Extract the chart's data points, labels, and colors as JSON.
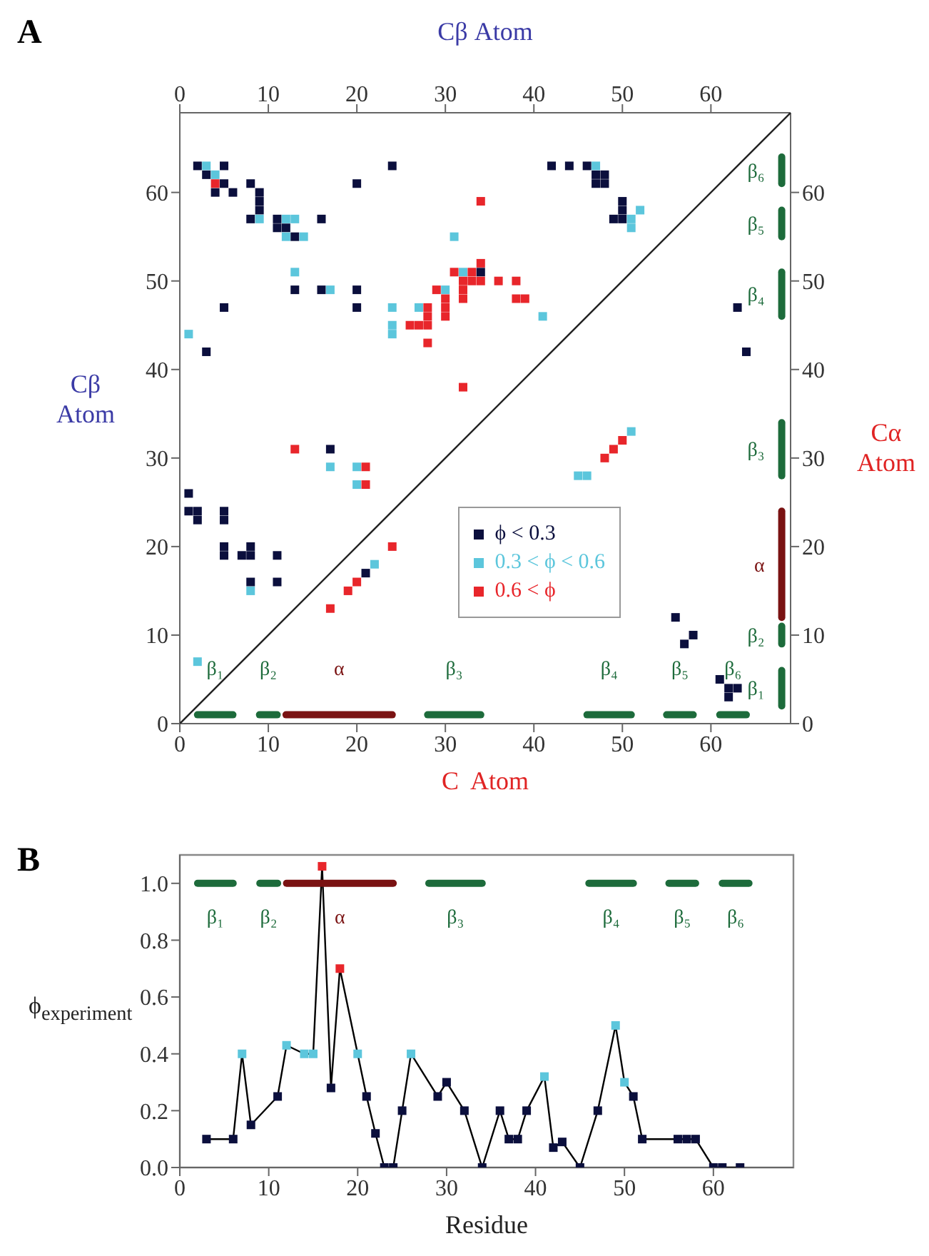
{
  "chart_data": [
    {
      "type": "scatter",
      "title": "A",
      "x2label": "Cβ Atom",
      "xlabel": "C  Atom",
      "ylabel": "Cβ Atom",
      "y2label": "Cα Atom",
      "xlim": [
        0,
        69
      ],
      "ylim": [
        0,
        69
      ],
      "x2lim": [
        0,
        69
      ],
      "y2lim": [
        0,
        69
      ],
      "xticks": [
        0,
        10,
        20,
        30,
        40,
        50,
        60
      ],
      "x2ticks": [
        0,
        10,
        20,
        30,
        40,
        50,
        60
      ],
      "yticks": [
        0,
        10,
        20,
        30,
        40,
        50,
        60
      ],
      "y2ticks": [
        0,
        10,
        20,
        30,
        40,
        50,
        60
      ],
      "marker": "square",
      "legend": "right",
      "grid": false,
      "series": [
        {
          "name": "ϕ < 0.3",
          "color": "#0b0f3d",
          "x": [
            2,
            5,
            24,
            42,
            44,
            46,
            3,
            5,
            8,
            20,
            4,
            6,
            9,
            9,
            9,
            8,
            11,
            16,
            11,
            12,
            13,
            34,
            13,
            16,
            20,
            5,
            20,
            3,
            17,
            1,
            1,
            2,
            5,
            2,
            5,
            5,
            5,
            7,
            8,
            8,
            11,
            8,
            11,
            21,
            47,
            48,
            47,
            48,
            50,
            50,
            49,
            50,
            63,
            64,
            56,
            57,
            58,
            61,
            62,
            62,
            63
          ],
          "values": [
            63,
            63,
            63,
            63,
            63,
            63,
            62,
            61,
            61,
            61,
            60,
            60,
            60,
            59,
            58,
            57,
            57,
            57,
            56,
            56,
            55,
            51,
            49,
            49,
            49,
            47,
            47,
            42,
            31,
            26,
            24,
            24,
            24,
            23,
            23,
            20,
            19,
            19,
            20,
            19,
            19,
            16,
            16,
            17,
            62,
            62,
            61,
            61,
            59,
            58,
            57,
            57,
            47,
            42,
            12,
            9,
            10,
            5,
            4,
            3,
            4
          ]
        },
        {
          "name": "0.3 < ϕ < 0.6",
          "color": "#5cc6dc",
          "x": [
            3,
            4,
            9,
            12,
            13,
            12,
            14,
            31,
            13,
            32,
            17,
            30,
            24,
            27,
            41,
            24,
            1,
            24,
            17,
            20,
            20,
            8,
            2,
            22,
            47,
            52,
            51,
            51,
            45,
            46,
            51
          ],
          "values": [
            63,
            62,
            57,
            57,
            57,
            55,
            55,
            55,
            51,
            51,
            49,
            49,
            47,
            47,
            46,
            45,
            44,
            44,
            29,
            29,
            27,
            15,
            7,
            18,
            63,
            58,
            57,
            56,
            28,
            28,
            33
          ]
        },
        {
          "name": "0.6 < ϕ",
          "color": "#e8262b",
          "x": [
            4,
            34,
            34,
            31,
            33,
            32,
            33,
            34,
            36,
            38,
            29,
            32,
            30,
            32,
            38,
            39,
            28,
            30,
            28,
            30,
            26,
            27,
            28,
            28,
            32,
            13,
            21,
            21,
            24,
            20,
            19,
            17,
            48,
            49,
            50
          ],
          "values": [
            61,
            59,
            52,
            51,
            51,
            50,
            50,
            50,
            50,
            50,
            49,
            49,
            48,
            48,
            48,
            48,
            47,
            47,
            46,
            46,
            45,
            45,
            45,
            43,
            38,
            31,
            29,
            27,
            20,
            16,
            15,
            13,
            30,
            31,
            32
          ]
        },
        {
          "type": "line",
          "color": "#222222",
          "marker": "none",
          "x": [
            0,
            69
          ],
          "values": [
            0,
            69
          ]
        },
        {
          "type": "line",
          "name": "β₁",
          "color": "#1d6b3b",
          "marker": "none",
          "x": [
            2,
            6
          ],
          "values": [
            1,
            1
          ]
        },
        {
          "type": "line",
          "name": "β₂",
          "color": "#1d6b3b",
          "marker": "none",
          "x": [
            9,
            11
          ],
          "values": [
            1,
            1
          ]
        },
        {
          "type": "line",
          "name": "α",
          "color": "#7a1212",
          "marker": "none",
          "x": [
            12,
            24
          ],
          "values": [
            1,
            1
          ]
        },
        {
          "type": "line",
          "name": "β₃",
          "color": "#1d6b3b",
          "marker": "none",
          "x": [
            28,
            34
          ],
          "values": [
            1,
            1
          ]
        },
        {
          "type": "line",
          "name": "β₄",
          "color": "#1d6b3b",
          "marker": "none",
          "x": [
            46,
            51
          ],
          "values": [
            1,
            1
          ]
        },
        {
          "type": "line",
          "name": "β₅",
          "color": "#1d6b3b",
          "marker": "none",
          "x": [
            55,
            58
          ],
          "values": [
            1,
            1
          ]
        },
        {
          "type": "line",
          "name": "β₆",
          "color": "#1d6b3b",
          "marker": "none",
          "x": [
            61,
            64
          ],
          "values": [
            1,
            1
          ]
        },
        {
          "type": "line",
          "name": "β₁",
          "color": "#1d6b3b",
          "marker": "none",
          "x": [
            68,
            68
          ],
          "values": [
            2,
            6
          ]
        },
        {
          "type": "line",
          "name": "β₂",
          "color": "#1d6b3b",
          "marker": "none",
          "x": [
            68,
            68
          ],
          "values": [
            9,
            11
          ]
        },
        {
          "type": "line",
          "name": "α",
          "color": "#7a1212",
          "marker": "none",
          "x": [
            68,
            68
          ],
          "values": [
            12,
            24
          ]
        },
        {
          "type": "line",
          "name": "β₃",
          "color": "#1d6b3b",
          "marker": "none",
          "x": [
            68,
            68
          ],
          "values": [
            28,
            34
          ]
        },
        {
          "type": "line",
          "name": "β₄",
          "color": "#1d6b3b",
          "marker": "none",
          "x": [
            68,
            68
          ],
          "values": [
            46,
            51
          ]
        },
        {
          "type": "line",
          "name": "β₅",
          "color": "#1d6b3b",
          "marker": "none",
          "x": [
            68,
            68
          ],
          "values": [
            55,
            58
          ]
        },
        {
          "type": "line",
          "name": "β₆",
          "color": "#1d6b3b",
          "marker": "none",
          "x": [
            68,
            68
          ],
          "values": [
            61,
            64
          ]
        }
      ]
    },
    {
      "type": "line",
      "title": "B",
      "xlabel": "Residue",
      "ylabel": "ϕ$_{experiment}$",
      "xlim": [
        0,
        69
      ],
      "ylim": [
        0,
        1.1
      ],
      "xticks": [
        0,
        10,
        20,
        30,
        40,
        50,
        60
      ],
      "yticks": [
        {
          "value": 0,
          "label": "0.0"
        },
        {
          "value": 0.2,
          "label": "0.2"
        },
        {
          "value": 0.4,
          "label": "0.4"
        },
        {
          "value": 0.6,
          "label": "0.6"
        },
        {
          "value": 0.8,
          "label": "0.8"
        },
        {
          "value": 1,
          "label": "1.0"
        }
      ],
      "marker": "square",
      "line_style": "solid",
      "legend": false,
      "grid": false,
      "series": [
        {
          "color": "#000000",
          "x": [
            3,
            6,
            7,
            8,
            11,
            12,
            14,
            15,
            16,
            17,
            18,
            20,
            21,
            22,
            23,
            24,
            25,
            26,
            29,
            30,
            32,
            34,
            36,
            37,
            38,
            39,
            41,
            42,
            43,
            45,
            47,
            49,
            50,
            51,
            52,
            56,
            57,
            58,
            60,
            61,
            63
          ],
          "values": [
            0.1,
            0.1,
            0.4,
            0.15,
            0.25,
            0.43,
            0.4,
            0.4,
            1.06,
            0.28,
            0.7,
            0.4,
            0.25,
            0.12,
            0,
            0,
            0.2,
            0.4,
            0.25,
            0.3,
            0.2,
            0,
            0.2,
            0.1,
            0.1,
            0.2,
            0.32,
            0.07,
            0.09,
            0,
            0.2,
            0.5,
            0.3,
            0.25,
            0.1,
            0.1,
            0.1,
            0.1,
            0,
            0,
            0
          ],
          "colors": [
            "#0b0f3d",
            "#0b0f3d",
            "#5cc6dc",
            "#0b0f3d",
            "#0b0f3d",
            "#5cc6dc",
            "#5cc6dc",
            "#5cc6dc",
            "#e8262b",
            "#0b0f3d",
            "#e8262b",
            "#5cc6dc",
            "#0b0f3d",
            "#0b0f3d",
            "#0b0f3d",
            "#0b0f3d",
            "#0b0f3d",
            "#5cc6dc",
            "#0b0f3d",
            "#0b0f3d",
            "#0b0f3d",
            "#0b0f3d",
            "#0b0f3d",
            "#0b0f3d",
            "#0b0f3d",
            "#0b0f3d",
            "#5cc6dc",
            "#0b0f3d",
            "#0b0f3d",
            "#0b0f3d",
            "#0b0f3d",
            "#5cc6dc",
            "#5cc6dc",
            "#0b0f3d",
            "#0b0f3d",
            "#0b0f3d",
            "#0b0f3d",
            "#0b0f3d",
            "#0b0f3d",
            "#0b0f3d",
            "#0b0f3d"
          ]
        },
        {
          "name": "β₁",
          "color": "#1d6b3b",
          "marker": "none",
          "x": [
            2,
            6
          ],
          "values": [
            1,
            1
          ]
        },
        {
          "name": "β₂",
          "color": "#1d6b3b",
          "marker": "none",
          "x": [
            9,
            11
          ],
          "values": [
            1,
            1
          ]
        },
        {
          "name": "α",
          "color": "#7a1212",
          "marker": "none",
          "x": [
            12,
            24
          ],
          "values": [
            1,
            1
          ]
        },
        {
          "name": "β₃",
          "color": "#1d6b3b",
          "marker": "none",
          "x": [
            28,
            34
          ],
          "values": [
            1,
            1
          ]
        },
        {
          "name": "β₄",
          "color": "#1d6b3b",
          "marker": "none",
          "x": [
            46,
            51
          ],
          "values": [
            1,
            1
          ]
        },
        {
          "name": "β₅",
          "color": "#1d6b3b",
          "marker": "none",
          "x": [
            55,
            58
          ],
          "values": [
            1,
            1
          ]
        },
        {
          "name": "β₆",
          "color": "#1d6b3b",
          "marker": "none",
          "x": [
            61,
            64
          ],
          "values": [
            1,
            1
          ]
        }
      ]
    }
  ]
}
